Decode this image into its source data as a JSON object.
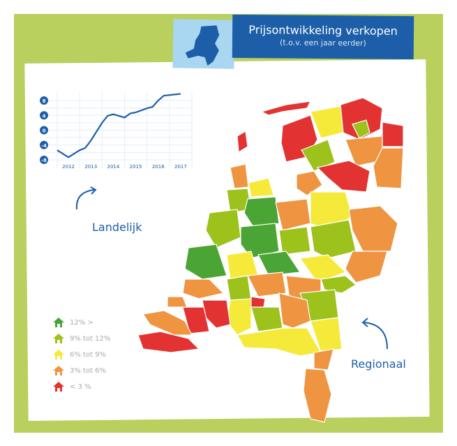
{
  "header": {
    "title": "Prijsontwikkeling verkopen",
    "subtitle": "(t.o.v. een jaar eerder)"
  },
  "labels": {
    "national": "Landelijk",
    "regional": "Regionaal"
  },
  "legend": [
    {
      "label": "12% >",
      "color": "#4aa535"
    },
    {
      "label": "9% tot 12%",
      "color": "#9cc21b"
    },
    {
      "label": "6% tot 9%",
      "color": "#f5ea3a"
    },
    {
      "label": "3% tot 6%",
      "color": "#ef9441"
    },
    {
      "label": "< 3 %",
      "color": "#e23232"
    }
  ],
  "colors": {
    "background": "#b9cf5e",
    "brand": "#1d5ea9",
    "thumb": "#a9d6f0"
  },
  "chart_data": {
    "type": "line",
    "xlim": [
      2012,
      2018
    ],
    "ylim": [
      -8,
      8
    ],
    "yticks": [
      8,
      4,
      0,
      -4,
      -8
    ],
    "xticks": [
      "2012",
      "2013",
      "2014",
      "2015",
      "2016",
      "2017"
    ],
    "grid": true,
    "series": [
      {
        "x": [
          2012.0,
          2012.5,
          2013.0,
          2013.25,
          2013.5,
          2014.0,
          2014.25,
          2014.5,
          2015.0,
          2015.25,
          2015.5,
          2016.0,
          2016.25,
          2016.5,
          2016.75,
          2017.5
        ],
        "values": [
          -5.4,
          -7.3,
          -5.4,
          -4.8,
          -2.8,
          2.0,
          3.9,
          4.3,
          3.4,
          4.5,
          4.8,
          5.9,
          6.3,
          8.0,
          9.3,
          9.8
        ],
        "color": "#1d5ea9"
      }
    ]
  }
}
